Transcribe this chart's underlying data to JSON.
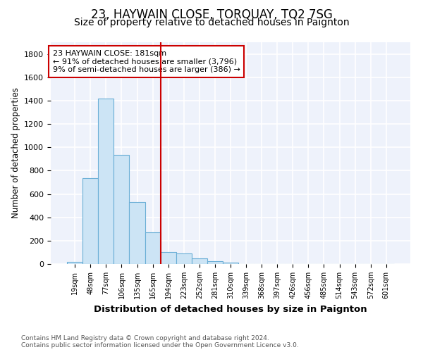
{
  "title": "23, HAYWAIN CLOSE, TORQUAY, TQ2 7SG",
  "subtitle": "Size of property relative to detached houses in Paignton",
  "xlabel": "Distribution of detached houses by size in Paignton",
  "ylabel": "Number of detached properties",
  "categories": [
    "19sqm",
    "48sqm",
    "77sqm",
    "106sqm",
    "135sqm",
    "165sqm",
    "194sqm",
    "223sqm",
    "252sqm",
    "281sqm",
    "310sqm",
    "339sqm",
    "368sqm",
    "397sqm",
    "426sqm",
    "456sqm",
    "485sqm",
    "514sqm",
    "543sqm",
    "572sqm",
    "601sqm"
  ],
  "values": [
    20,
    735,
    1420,
    935,
    530,
    270,
    103,
    88,
    50,
    25,
    10,
    3,
    0,
    3,
    0,
    0,
    0,
    0,
    0,
    0,
    0
  ],
  "bar_color": "#cce4f5",
  "bar_edge_color": "#6aaed6",
  "vline_x_index": 6.0,
  "vline_color": "#cc0000",
  "annotation_line1": "23 HAYWAIN CLOSE: 181sqm",
  "annotation_line2": "← 91% of detached houses are smaller (3,796)",
  "annotation_line3": "9% of semi-detached houses are larger (386) →",
  "annotation_box_color": "#ffffff",
  "annotation_box_edge": "#cc0000",
  "footer_text": "Contains HM Land Registry data © Crown copyright and database right 2024.\nContains public sector information licensed under the Open Government Licence v3.0.",
  "ylim": [
    0,
    1900
  ],
  "background_color": "#ffffff",
  "plot_bg_color": "#eef2fb",
  "grid_color": "#ffffff",
  "title_fontsize": 12,
  "subtitle_fontsize": 10
}
